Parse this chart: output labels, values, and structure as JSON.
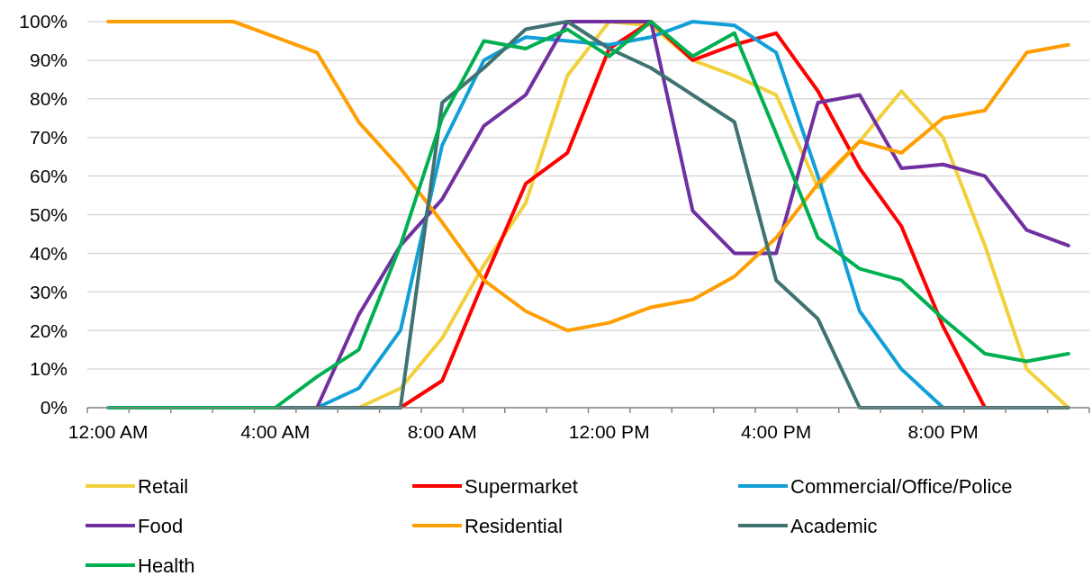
{
  "chart_data": {
    "type": "line",
    "categories": [
      "12:00 AM",
      null,
      null,
      null,
      "4:00 AM",
      null,
      null,
      null,
      "8:00 AM",
      null,
      null,
      null,
      "12:00 PM",
      null,
      null,
      null,
      "4:00 PM",
      null,
      null,
      null,
      "8:00 PM",
      null,
      null,
      null
    ],
    "series": [
      {
        "name": "Retail",
        "color": "#f2d03b",
        "values": [
          null,
          null,
          null,
          null,
          null,
          null,
          0,
          5,
          18,
          37,
          53,
          86,
          100,
          99,
          90,
          86,
          81,
          57,
          69,
          82,
          70,
          42,
          10,
          0
        ]
      },
      {
        "name": "Supermarket",
        "color": "#ff0000",
        "values": [
          null,
          null,
          null,
          null,
          null,
          null,
          null,
          0,
          7,
          33,
          58,
          66,
          93,
          100,
          90,
          94,
          97,
          82,
          62,
          47,
          21,
          0,
          null,
          null
        ]
      },
      {
        "name": "Commercial/Office/Police",
        "color": "#119fd8",
        "values": [
          null,
          null,
          null,
          null,
          null,
          0,
          5,
          20,
          68,
          90,
          96,
          95,
          94,
          96,
          100,
          99,
          92,
          60,
          25,
          10,
          0,
          null,
          null,
          null
        ]
      },
      {
        "name": "Food",
        "color": "#7030a0",
        "values": [
          null,
          null,
          null,
          null,
          null,
          0,
          24,
          42,
          54,
          73,
          81,
          100,
          100,
          100,
          51,
          40,
          40,
          79,
          81,
          62,
          63,
          60,
          46,
          42
        ]
      },
      {
        "name": "Residential",
        "color": "#ff9e00",
        "values": [
          100,
          100,
          100,
          100,
          96,
          92,
          74,
          62,
          48,
          33,
          25,
          20,
          22,
          26,
          28,
          34,
          44,
          58,
          69,
          66,
          75,
          77,
          92,
          94
        ]
      },
      {
        "name": "Academic",
        "color": "#407272",
        "values": [
          null,
          null,
          null,
          null,
          0,
          0,
          0,
          0,
          79,
          88,
          98,
          100,
          93,
          88,
          81,
          74,
          33,
          23,
          0,
          0,
          0,
          0,
          0,
          0
        ]
      },
      {
        "name": "Health",
        "color": "#00b050",
        "values": [
          0,
          0,
          0,
          0,
          0,
          8,
          15,
          42,
          75,
          95,
          93,
          98,
          91,
          100,
          91,
          97,
          71,
          44,
          36,
          33,
          23,
          14,
          12,
          14
        ]
      }
    ],
    "ylim": [
      0,
      100
    ],
    "yticks": [
      {
        "value": 0,
        "label": "0%"
      },
      {
        "value": 10,
        "label": "10%"
      },
      {
        "value": 20,
        "label": "20%"
      },
      {
        "value": 30,
        "label": "30%"
      },
      {
        "value": 40,
        "label": "40%"
      },
      {
        "value": 50,
        "label": "50%"
      },
      {
        "value": 60,
        "label": "60%"
      },
      {
        "value": 70,
        "label": "70%"
      },
      {
        "value": 80,
        "label": "80%"
      },
      {
        "value": 90,
        "label": "90%"
      },
      {
        "value": 100,
        "label": "100%"
      }
    ],
    "grid": "y",
    "legend": "bottom",
    "marker": "none",
    "line_style": "solid"
  }
}
